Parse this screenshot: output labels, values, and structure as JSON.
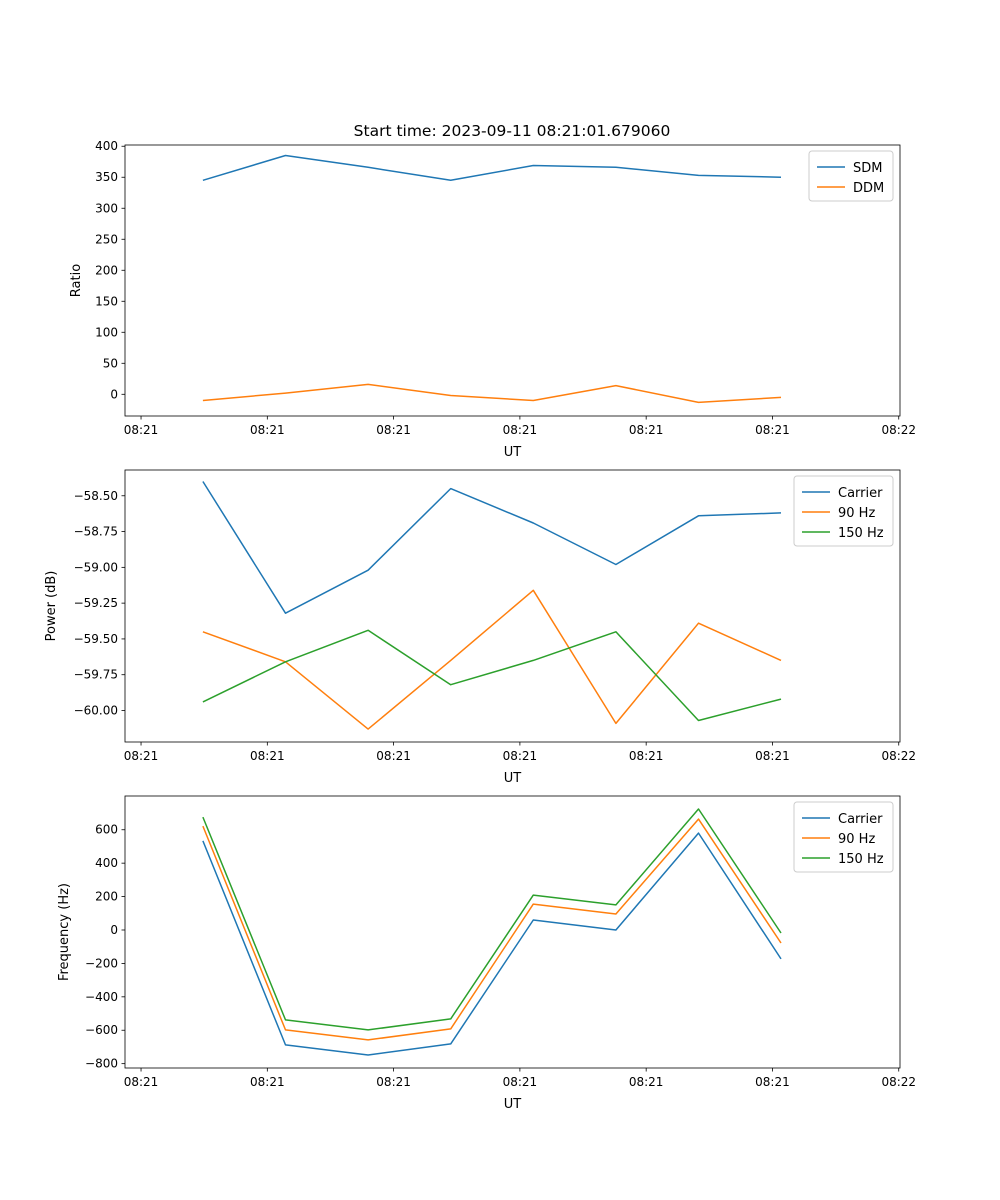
{
  "colors": {
    "blue": "#1f77b4",
    "orange": "#ff7f0e",
    "green": "#2ca02c"
  },
  "chart_data": [
    {
      "type": "line",
      "title": "Start time: 2023-09-11 08:21:01.679060",
      "xlabel": "UT",
      "ylabel": "Ratio",
      "x": [
        4.9,
        11.44,
        17.98,
        24.52,
        31.06,
        37.6,
        44.14,
        50.68
      ],
      "xlim": [
        -1.27,
        60.1
      ],
      "xticks": [
        0,
        10,
        20,
        30,
        40,
        50,
        60
      ],
      "xtick_labels": [
        "08:21",
        "08:21",
        "08:21",
        "08:21",
        "08:21",
        "08:21",
        "08:22"
      ],
      "ylim": [
        -35,
        402
      ],
      "yticks": [
        0,
        50,
        100,
        150,
        200,
        250,
        300,
        350,
        400
      ],
      "ytick_labels": [
        "0",
        "50",
        "100",
        "150",
        "200",
        "250",
        "300",
        "350",
        "400"
      ],
      "legend_position": "top-right",
      "series": [
        {
          "name": "SDM",
          "color": "#1f77b4",
          "values": [
            345,
            385,
            366,
            345,
            369,
            366,
            353,
            350
          ]
        },
        {
          "name": "DDM",
          "color": "#ff7f0e",
          "values": [
            -10,
            2,
            16,
            -2,
            -10,
            14,
            -13,
            -5
          ]
        }
      ]
    },
    {
      "type": "line",
      "xlabel": "UT",
      "ylabel": "Power (dB)",
      "x": [
        4.9,
        11.44,
        17.98,
        24.52,
        31.06,
        37.6,
        44.14,
        50.68
      ],
      "xlim": [
        -1.27,
        60.1
      ],
      "xticks": [
        0,
        10,
        20,
        30,
        40,
        50,
        60
      ],
      "xtick_labels": [
        "08:21",
        "08:21",
        "08:21",
        "08:21",
        "08:21",
        "08:21",
        "08:22"
      ],
      "ylim": [
        -60.22,
        -58.32
      ],
      "yticks": [
        -60.0,
        -59.75,
        -59.5,
        -59.25,
        -59.0,
        -58.75,
        -58.5
      ],
      "ytick_labels": [
        "−60.00",
        "−59.75",
        "−59.50",
        "−59.25",
        "−59.00",
        "−58.75",
        "−58.50"
      ],
      "legend_position": "top-right",
      "series": [
        {
          "name": "Carrier",
          "color": "#1f77b4",
          "values": [
            -58.4,
            -59.32,
            -59.02,
            -58.45,
            -58.69,
            -58.98,
            -58.64,
            -58.62
          ]
        },
        {
          "name": "90 Hz",
          "color": "#ff7f0e",
          "values": [
            -59.45,
            -59.66,
            -60.13,
            -59.65,
            -59.16,
            -60.09,
            -59.39,
            -59.65
          ]
        },
        {
          "name": "150 Hz",
          "color": "#2ca02c",
          "values": [
            -59.94,
            -59.66,
            -59.44,
            -59.82,
            -59.65,
            -59.45,
            -60.07,
            -59.92
          ]
        }
      ]
    },
    {
      "type": "line",
      "xlabel": "UT",
      "ylabel": "Frequency (Hz)",
      "x": [
        4.9,
        11.44,
        17.98,
        24.52,
        31.06,
        37.6,
        44.14,
        50.68
      ],
      "xlim": [
        -1.27,
        60.1
      ],
      "xticks": [
        0,
        10,
        20,
        30,
        40,
        50,
        60
      ],
      "xtick_labels": [
        "08:21",
        "08:21",
        "08:21",
        "08:21",
        "08:21",
        "08:21",
        "08:22"
      ],
      "ylim": [
        -826,
        802
      ],
      "yticks": [
        -800,
        -600,
        -400,
        -200,
        0,
        200,
        400,
        600
      ],
      "ytick_labels": [
        "−800",
        "−600",
        "−400",
        "−200",
        "0",
        "200",
        "400",
        "600"
      ],
      "legend_position": "top-right",
      "series": [
        {
          "name": "Carrier",
          "color": "#1f77b4",
          "values": [
            533,
            -688,
            -748,
            -682,
            60,
            0,
            580,
            -173
          ]
        },
        {
          "name": "90 Hz",
          "color": "#ff7f0e",
          "values": [
            622,
            -598,
            -658,
            -592,
            155,
            96,
            664,
            -78
          ]
        },
        {
          "name": "150 Hz",
          "color": "#2ca02c",
          "values": [
            676,
            -538,
            -598,
            -532,
            209,
            150,
            724,
            -18
          ]
        }
      ]
    }
  ]
}
